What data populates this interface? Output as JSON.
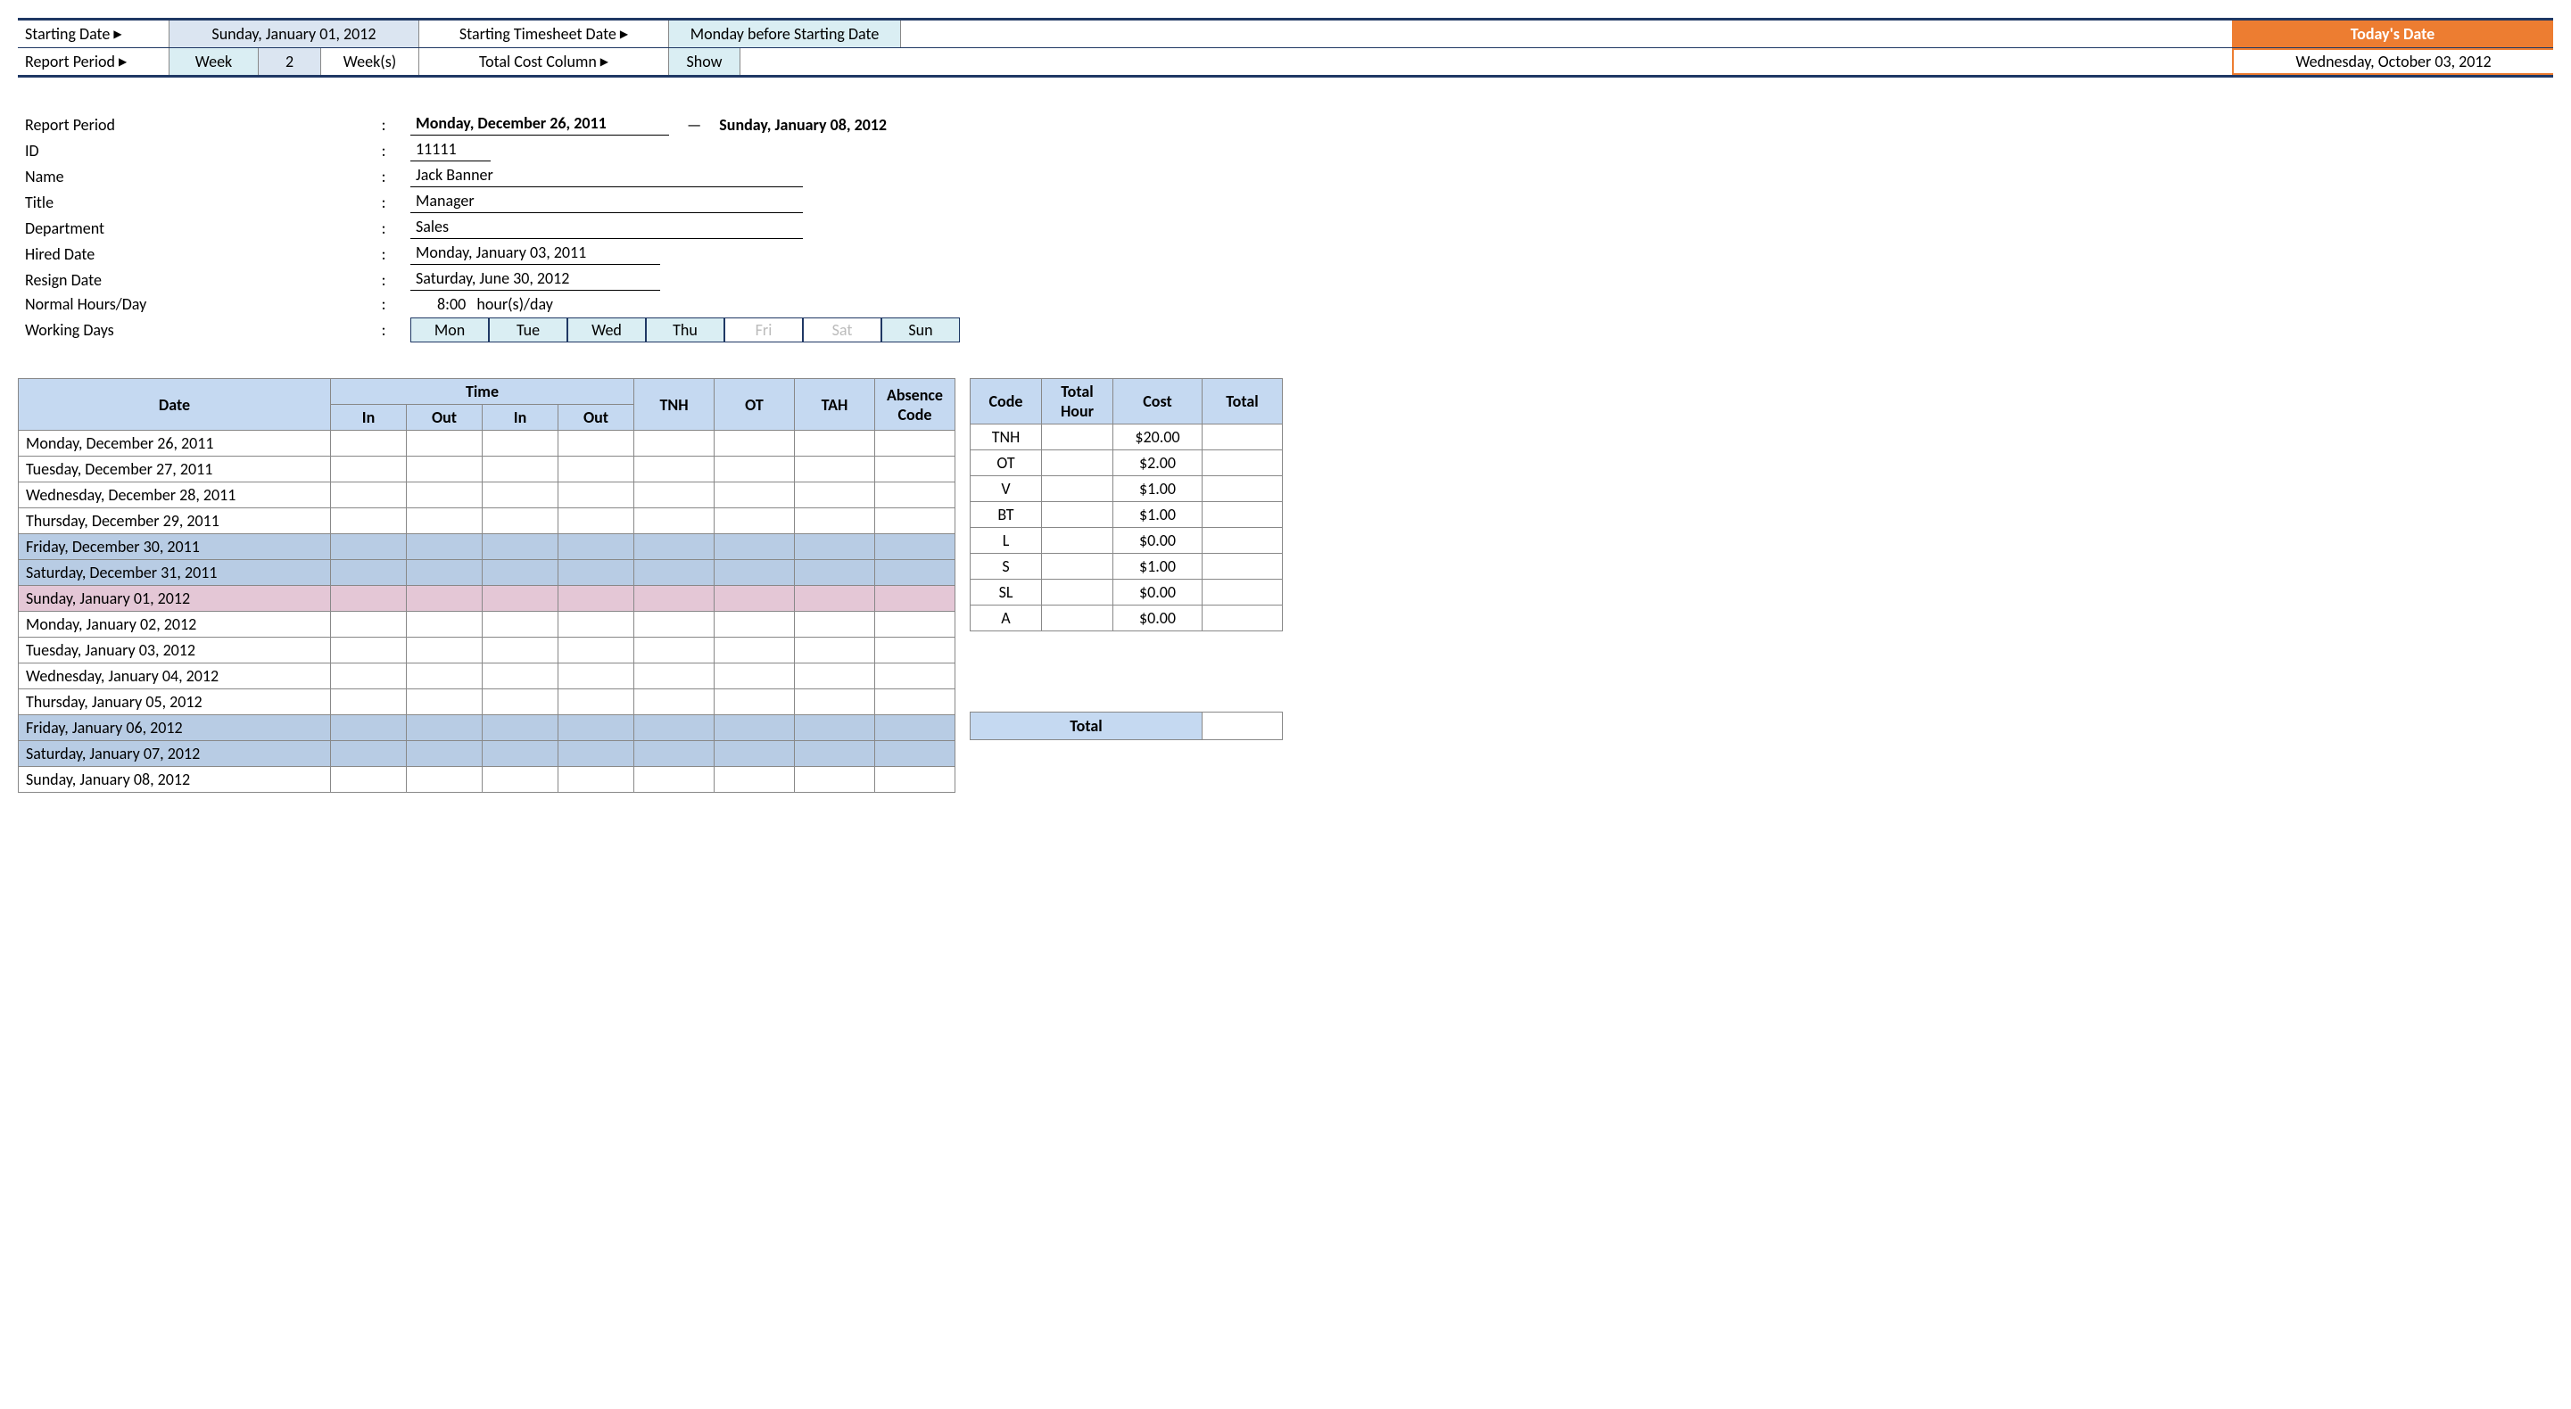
{
  "top": {
    "startingDateLabel": "Starting Date",
    "startingDateValue": "Sunday, January 01, 2012",
    "reportPeriodLabel": "Report Period",
    "reportPeriodUnit": "Week",
    "reportPeriodNum": "2",
    "reportPeriodSuffix": "Week(s)",
    "startingTimesheetLabel": "Starting Timesheet Date",
    "startingTimesheetValue": "Monday before Starting Date",
    "totalCostLabel": "Total Cost Column",
    "totalCostValue": "Show",
    "todayLabel": "Today's Date",
    "todayValue": "Wednesday, October 03, 2012"
  },
  "info": {
    "reportPeriodLabel": "Report Period",
    "reportStart": "Monday, December 26, 2011",
    "reportEnd": "Sunday, January 08, 2012",
    "idLabel": "ID",
    "id": "11111",
    "nameLabel": "Name",
    "name": "Jack Banner",
    "titleLabel": "Title",
    "title": "Manager",
    "deptLabel": "Department",
    "dept": "Sales",
    "hiredLabel": "Hired Date",
    "hired": "Monday, January 03, 2011",
    "resignLabel": "Resign Date",
    "resign": "Saturday, June 30, 2012",
    "normalHoursLabel": "Normal Hours/Day",
    "normalHours": "8:00",
    "normalHoursSuffix": "hour(s)/day",
    "workingDaysLabel": "Working Days",
    "days": [
      "Mon",
      "Tue",
      "Wed",
      "Thu",
      "Fri",
      "Sat",
      "Sun"
    ],
    "daysOn": [
      true,
      true,
      true,
      true,
      false,
      false,
      true
    ]
  },
  "ts": {
    "headers": {
      "date": "Date",
      "time": "Time",
      "in": "In",
      "out": "Out",
      "tnh": "TNH",
      "ot": "OT",
      "tah": "TAH",
      "absence": "Absence Code"
    },
    "rows": [
      {
        "date": "Monday, December 26, 2011",
        "cls": ""
      },
      {
        "date": "Tuesday, December 27, 2011",
        "cls": ""
      },
      {
        "date": "Wednesday, December 28, 2011",
        "cls": ""
      },
      {
        "date": "Thursday, December 29, 2011",
        "cls": ""
      },
      {
        "date": "Friday, December 30, 2011",
        "cls": "row-wknd"
      },
      {
        "date": "Saturday, December 31, 2011",
        "cls": "row-wknd"
      },
      {
        "date": "Sunday, January 01, 2012",
        "cls": "row-sun"
      },
      {
        "date": "Monday, January 02, 2012",
        "cls": ""
      },
      {
        "date": "Tuesday, January 03, 2012",
        "cls": ""
      },
      {
        "date": "Wednesday, January 04, 2012",
        "cls": ""
      },
      {
        "date": "Thursday, January 05, 2012",
        "cls": ""
      },
      {
        "date": "Friday, January 06, 2012",
        "cls": "row-wknd"
      },
      {
        "date": "Saturday, January 07, 2012",
        "cls": "row-wknd"
      },
      {
        "date": "Sunday, January 08, 2012",
        "cls": ""
      }
    ]
  },
  "cost": {
    "headers": {
      "code": "Code",
      "totalHour": "Total Hour",
      "cost": "Cost",
      "total": "Total"
    },
    "rows": [
      {
        "code": "TNH",
        "cost": "$20.00"
      },
      {
        "code": "OT",
        "cost": "$2.00"
      },
      {
        "code": "V",
        "cost": "$1.00"
      },
      {
        "code": "BT",
        "cost": "$1.00"
      },
      {
        "code": "L",
        "cost": "$0.00"
      },
      {
        "code": "S",
        "cost": "$1.00"
      },
      {
        "code": "SL",
        "cost": "$0.00"
      },
      {
        "code": "A",
        "cost": "$0.00"
      }
    ],
    "totalLabel": "Total"
  }
}
